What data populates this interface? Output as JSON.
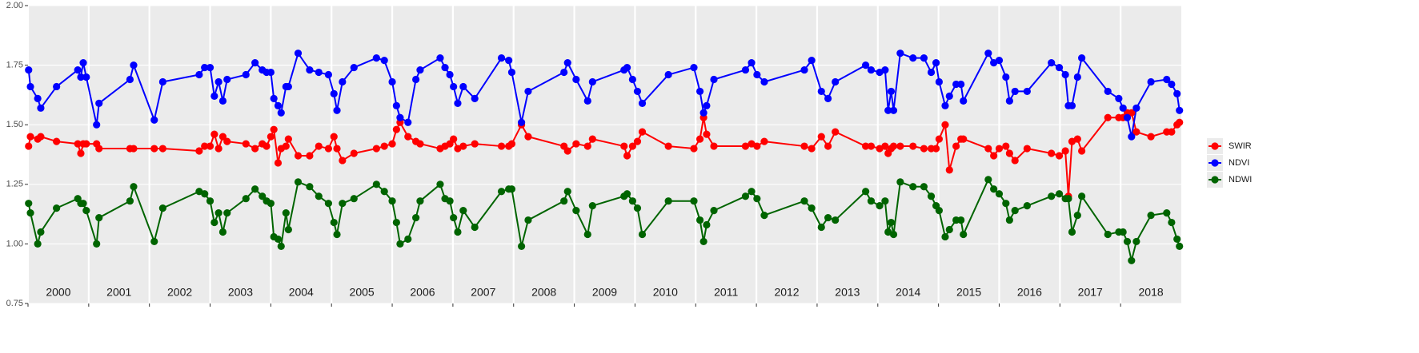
{
  "chart_data": {
    "type": "line",
    "legend": "right",
    "grid": true,
    "xlim": [
      2000,
      2019
    ],
    "xticks": [
      2000,
      2001,
      2002,
      2003,
      2004,
      2005,
      2006,
      2007,
      2008,
      2009,
      2010,
      2011,
      2012,
      2013,
      2014,
      2015,
      2016,
      2017,
      2018
    ],
    "ylim": [
      0.75,
      2.0
    ],
    "yticks": [
      {
        "value": 0.75,
        "label": "0.75"
      },
      {
        "value": 1.0,
        "label": "1.00"
      },
      {
        "value": 1.25,
        "label": "1.25"
      },
      {
        "value": 1.5,
        "label": "1.50"
      },
      {
        "value": 1.75,
        "label": "1.75"
      },
      {
        "value": 2.0,
        "label": "2.00"
      }
    ],
    "x": [
      2000.01,
      2000.04,
      2000.16,
      2000.21,
      2000.47,
      2000.82,
      2000.87,
      2000.91,
      2000.96,
      2001.13,
      2001.17,
      2001.68,
      2001.74,
      2002.08,
      2002.22,
      2002.82,
      2002.91,
      2003.0,
      2003.07,
      2003.14,
      2003.21,
      2003.28,
      2003.59,
      2003.74,
      2003.86,
      2003.93,
      2004.0,
      2004.05,
      2004.12,
      2004.17,
      2004.25,
      2004.29,
      2004.45,
      2004.64,
      2004.79,
      2004.95,
      2005.04,
      2005.09,
      2005.18,
      2005.37,
      2005.74,
      2005.87,
      2006.0,
      2006.07,
      2006.13,
      2006.26,
      2006.39,
      2006.46,
      2006.79,
      2006.87,
      2006.95,
      2007.01,
      2007.08,
      2007.17,
      2007.36,
      2007.8,
      2007.92,
      2007.97,
      2008.13,
      2008.24,
      2008.83,
      2008.89,
      2009.03,
      2009.22,
      2009.3,
      2009.82,
      2009.87,
      2009.96,
      2010.04,
      2010.12,
      2010.55,
      2010.97,
      2011.07,
      2011.13,
      2011.18,
      2011.3,
      2011.82,
      2011.92,
      2012.01,
      2012.13,
      2012.79,
      2012.91,
      2013.07,
      2013.18,
      2013.3,
      2013.8,
      2013.89,
      2014.03,
      2014.12,
      2014.17,
      2014.22,
      2014.26,
      2014.37,
      2014.58,
      2014.76,
      2014.88,
      2014.96,
      2015.01,
      2015.11,
      2015.18,
      2015.29,
      2015.37,
      2015.41,
      2015.82,
      2015.91,
      2016.0,
      2016.11,
      2016.17,
      2016.26,
      2016.46,
      2016.86,
      2016.99,
      2017.09,
      2017.14,
      2017.2,
      2017.29,
      2017.36,
      2017.79,
      2017.97,
      2018.04,
      2018.11,
      2018.18,
      2018.26,
      2018.5,
      2018.76,
      2018.84,
      2018.93,
      2018.97
    ],
    "series": [
      {
        "name": "SWIR",
        "color": "#ff0000",
        "values": [
          1.41,
          1.45,
          1.44,
          1.45,
          1.43,
          1.42,
          1.38,
          1.42,
          1.42,
          1.42,
          1.4,
          1.4,
          1.4,
          1.4,
          1.4,
          1.39,
          1.41,
          1.41,
          1.46,
          1.4,
          1.45,
          1.43,
          1.42,
          1.4,
          1.42,
          1.41,
          1.45,
          1.48,
          1.34,
          1.4,
          1.41,
          1.44,
          1.37,
          1.37,
          1.41,
          1.4,
          1.45,
          1.4,
          1.35,
          1.38,
          1.4,
          1.41,
          1.42,
          1.48,
          1.51,
          1.45,
          1.43,
          1.42,
          1.4,
          1.41,
          1.42,
          1.44,
          1.4,
          1.41,
          1.42,
          1.41,
          1.41,
          1.42,
          1.5,
          1.45,
          1.41,
          1.39,
          1.42,
          1.41,
          1.44,
          1.41,
          1.37,
          1.41,
          1.43,
          1.47,
          1.41,
          1.4,
          1.44,
          1.53,
          1.46,
          1.41,
          1.41,
          1.42,
          1.41,
          1.43,
          1.41,
          1.4,
          1.45,
          1.41,
          1.47,
          1.41,
          1.41,
          1.4,
          1.41,
          1.38,
          1.4,
          1.41,
          1.41,
          1.41,
          1.4,
          1.4,
          1.4,
          1.44,
          1.5,
          1.31,
          1.41,
          1.44,
          1.44,
          1.4,
          1.37,
          1.4,
          1.41,
          1.38,
          1.35,
          1.4,
          1.38,
          1.37,
          1.39,
          1.2,
          1.43,
          1.44,
          1.39,
          1.53,
          1.53,
          1.53,
          1.55,
          1.55,
          1.47,
          1.45,
          1.47,
          1.47,
          1.5,
          1.51
        ]
      },
      {
        "name": "NDVI",
        "color": "#0000ff",
        "values": [
          1.73,
          1.66,
          1.61,
          1.57,
          1.66,
          1.73,
          1.7,
          1.76,
          1.7,
          1.5,
          1.59,
          1.69,
          1.75,
          1.52,
          1.68,
          1.71,
          1.74,
          1.74,
          1.62,
          1.68,
          1.6,
          1.69,
          1.71,
          1.76,
          1.73,
          1.72,
          1.72,
          1.61,
          1.58,
          1.55,
          1.66,
          1.66,
          1.8,
          1.73,
          1.72,
          1.71,
          1.63,
          1.56,
          1.68,
          1.74,
          1.78,
          1.77,
          1.68,
          1.58,
          1.53,
          1.51,
          1.69,
          1.73,
          1.78,
          1.74,
          1.71,
          1.66,
          1.59,
          1.66,
          1.61,
          1.78,
          1.77,
          1.72,
          1.51,
          1.64,
          1.72,
          1.76,
          1.69,
          1.6,
          1.68,
          1.73,
          1.74,
          1.69,
          1.64,
          1.59,
          1.71,
          1.74,
          1.64,
          1.55,
          1.58,
          1.69,
          1.73,
          1.76,
          1.71,
          1.68,
          1.73,
          1.77,
          1.64,
          1.61,
          1.68,
          1.75,
          1.73,
          1.72,
          1.73,
          1.56,
          1.64,
          1.56,
          1.8,
          1.78,
          1.78,
          1.72,
          1.76,
          1.68,
          1.58,
          1.62,
          1.67,
          1.67,
          1.6,
          1.8,
          1.76,
          1.77,
          1.7,
          1.6,
          1.64,
          1.64,
          1.76,
          1.74,
          1.71,
          1.58,
          1.58,
          1.7,
          1.78,
          1.64,
          1.61,
          1.57,
          1.53,
          1.45,
          1.57,
          1.68,
          1.69,
          1.67,
          1.63,
          1.56
        ]
      },
      {
        "name": "NDWI",
        "color": "#006400",
        "values": [
          1.17,
          1.13,
          1.0,
          1.05,
          1.15,
          1.19,
          1.17,
          1.17,
          1.14,
          1.0,
          1.11,
          1.18,
          1.24,
          1.01,
          1.15,
          1.22,
          1.21,
          1.18,
          1.09,
          1.13,
          1.05,
          1.13,
          1.19,
          1.23,
          1.2,
          1.18,
          1.17,
          1.03,
          1.02,
          0.99,
          1.13,
          1.06,
          1.26,
          1.24,
          1.2,
          1.17,
          1.09,
          1.04,
          1.17,
          1.19,
          1.25,
          1.22,
          1.18,
          1.09,
          1.0,
          1.02,
          1.11,
          1.18,
          1.25,
          1.19,
          1.18,
          1.11,
          1.05,
          1.14,
          1.07,
          1.22,
          1.23,
          1.23,
          0.99,
          1.1,
          1.18,
          1.22,
          1.14,
          1.04,
          1.16,
          1.2,
          1.21,
          1.18,
          1.15,
          1.04,
          1.18,
          1.18,
          1.1,
          1.01,
          1.08,
          1.14,
          1.2,
          1.22,
          1.19,
          1.12,
          1.18,
          1.15,
          1.07,
          1.11,
          1.1,
          1.22,
          1.18,
          1.16,
          1.18,
          1.05,
          1.09,
          1.04,
          1.26,
          1.24,
          1.24,
          1.2,
          1.16,
          1.14,
          1.03,
          1.06,
          1.1,
          1.1,
          1.04,
          1.27,
          1.23,
          1.21,
          1.17,
          1.1,
          1.14,
          1.16,
          1.2,
          1.21,
          1.19,
          1.19,
          1.05,
          1.12,
          1.2,
          1.04,
          1.05,
          1.05,
          1.01,
          0.93,
          1.01,
          1.12,
          1.13,
          1.09,
          1.02,
          0.99
        ]
      }
    ]
  }
}
